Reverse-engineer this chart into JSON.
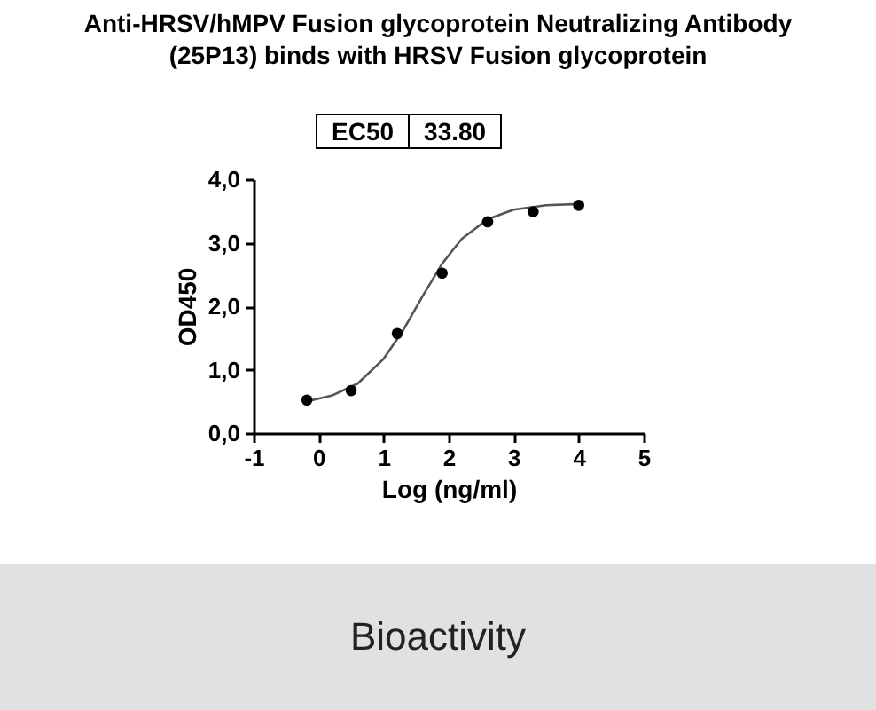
{
  "chart_data": {
    "type": "scatter",
    "title": "Anti-HRSV/hMPV Fusion glycoprotein Neutralizing Antibody (25P13) binds with HRSV Fusion glycoprotein",
    "xlabel": "Log (ng/ml)",
    "ylabel": "OD450",
    "annotations": [
      "EC50",
      "33.80",
      "Bioactivity"
    ],
    "xlim": [
      -1,
      5
    ],
    "xticks": [
      -1,
      0,
      1,
      2,
      3,
      4,
      5
    ],
    "ylim": [
      0,
      4
    ],
    "yticks": [
      {
        "value": 0,
        "label": "0,0"
      },
      {
        "value": 1,
        "label": "1,0"
      },
      {
        "value": 2,
        "label": "2,0"
      },
      {
        "value": 3,
        "label": "3,0"
      },
      {
        "value": 4,
        "label": "4,0"
      }
    ],
    "grid": false,
    "series": [
      {
        "type": "line",
        "color": "#555555",
        "marker": "none",
        "x": [
          -0.18,
          0.2,
          0.6,
          1.0,
          1.3,
          1.6,
          1.9,
          2.2,
          2.6,
          3.0,
          3.5,
          4.0
        ],
        "values": [
          0.5,
          0.59,
          0.78,
          1.17,
          1.62,
          2.16,
          2.67,
          3.06,
          3.37,
          3.52,
          3.59,
          3.61
        ]
      },
      {
        "color": "#000000",
        "marker": "circle",
        "x": [
          -0.18,
          0.5,
          1.21,
          1.9,
          2.6,
          3.3,
          4.0
        ],
        "values": [
          0.52,
          0.67,
          1.57,
          2.52,
          3.33,
          3.49,
          3.59
        ]
      }
    ]
  }
}
